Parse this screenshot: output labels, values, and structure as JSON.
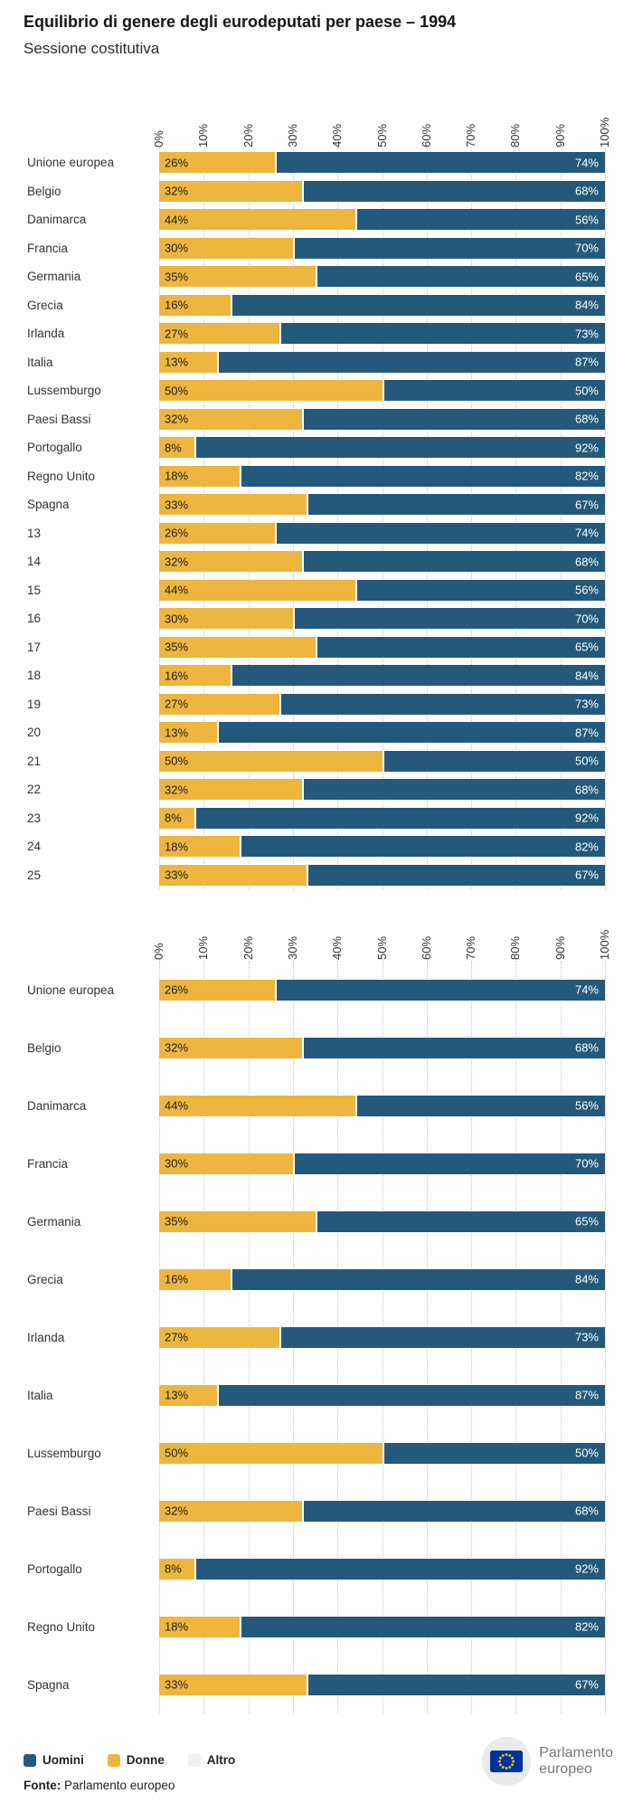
{
  "title": "Equilibrio di genere degli eurodeputati per paese – 1994",
  "subtitle": "Sessione costitutiva",
  "colors": {
    "uomini": "#24597C",
    "donne": "#EEB63E",
    "altro": "#F1F1F1",
    "grid": "#C6C6C6"
  },
  "legend": [
    {
      "label": "Uomini",
      "color": "#24597C"
    },
    {
      "label": "Donne",
      "color": "#EEB63E"
    },
    {
      "label": "Altro",
      "color": "#F1F1F1"
    }
  ],
  "source": {
    "prefix": "Fonte:",
    "text": "Parlamento europeo"
  },
  "logo": {
    "line1": "Parlamento",
    "line2": "europeo"
  },
  "chart_data": [
    {
      "type": "bar",
      "orientation": "horizontal",
      "stacked": true,
      "grid": "vertical-dotted",
      "xlim": [
        0,
        100
      ],
      "ticks": [
        "0%",
        "10%",
        "20%",
        "30%",
        "40%",
        "50%",
        "60%",
        "70%",
        "80%",
        "90%",
        "100%"
      ],
      "categories": [
        "Unione europea",
        "Belgio",
        "Danimarca",
        "Francia",
        "Germania",
        "Grecia",
        "Irlanda",
        "Italia",
        "Lussemburgo",
        "Paesi Bassi",
        "Portogallo",
        "Regno Unito",
        "Spagna",
        "13",
        "14",
        "15",
        "16",
        "17",
        "18",
        "19",
        "20",
        "21",
        "22",
        "23",
        "24",
        "25"
      ],
      "series": [
        {
          "name": "Donne",
          "color": "#EEB63E",
          "values": [
            26,
            32,
            44,
            30,
            35,
            16,
            27,
            13,
            50,
            32,
            8,
            18,
            33,
            26,
            32,
            44,
            30,
            35,
            16,
            27,
            13,
            50,
            32,
            8,
            18,
            33
          ]
        },
        {
          "name": "Uomini",
          "color": "#24597C",
          "values": [
            74,
            68,
            56,
            70,
            65,
            84,
            73,
            87,
            50,
            68,
            92,
            82,
            67,
            74,
            68,
            56,
            70,
            65,
            84,
            73,
            87,
            50,
            68,
            92,
            82,
            67
          ]
        }
      ]
    },
    {
      "type": "bar",
      "orientation": "horizontal",
      "stacked": true,
      "grid": "vertical-dotted",
      "xlim": [
        0,
        100
      ],
      "ticks": [
        "0%",
        "10%",
        "20%",
        "30%",
        "40%",
        "50%",
        "60%",
        "70%",
        "80%",
        "90%",
        "100%"
      ],
      "categories": [
        "Unione europea",
        "Belgio",
        "Danimarca",
        "Francia",
        "Germania",
        "Grecia",
        "Irlanda",
        "Italia",
        "Lussemburgo",
        "Paesi Bassi",
        "Portogallo",
        "Regno Unito",
        "Spagna"
      ],
      "series": [
        {
          "name": "Donne",
          "color": "#EEB63E",
          "values": [
            26,
            32,
            44,
            30,
            35,
            16,
            27,
            13,
            50,
            32,
            8,
            18,
            33
          ]
        },
        {
          "name": "Uomini",
          "color": "#24597C",
          "values": [
            74,
            68,
            56,
            70,
            65,
            84,
            73,
            87,
            50,
            68,
            92,
            82,
            67
          ]
        }
      ]
    }
  ]
}
